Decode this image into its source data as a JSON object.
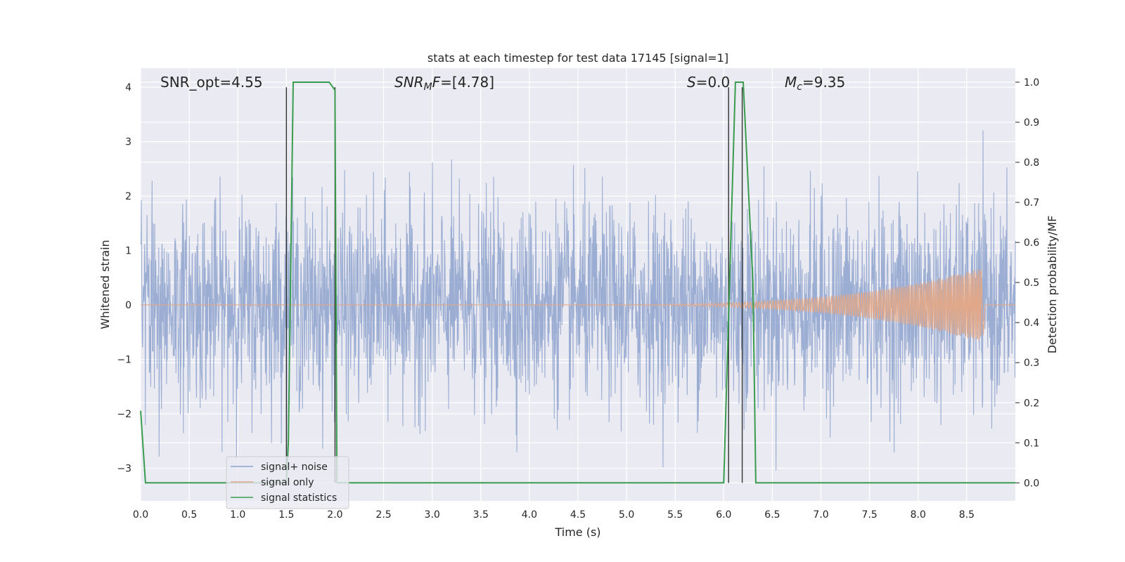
{
  "chart_data": {
    "type": "line",
    "title": "stats at each timestep for test data 17145 [signal=1]",
    "xlabel": "Time (s)",
    "ylabel_left": "Whitened strain",
    "ylabel_right": "Detection probability/MF",
    "xlim": [
      0.0,
      9.0
    ],
    "ylim_left": [
      -3.6,
      4.35
    ],
    "ylim_right": [
      -0.045,
      1.035
    ],
    "x_ticks": [
      "0.0",
      "0.5",
      "1.0",
      "1.5",
      "2.0",
      "2.5",
      "3.0",
      "3.5",
      "4.0",
      "4.5",
      "5.0",
      "5.5",
      "6.0",
      "6.5",
      "7.0",
      "7.5",
      "8.0",
      "8.5"
    ],
    "y_ticks_left": [
      "−3",
      "−2",
      "−1",
      "0",
      "1",
      "2",
      "3",
      "4"
    ],
    "y_ticks_right": [
      "0.0",
      "0.1",
      "0.2",
      "0.3",
      "0.4",
      "0.5",
      "0.6",
      "0.7",
      "0.8",
      "0.9",
      "1.0"
    ],
    "grid": true,
    "legend_position": "lower-left",
    "annotations": {
      "snr_opt": "SNR_opt=4.55",
      "snr_mf": "[4.78]",
      "snr_mf_prefix": "SNR",
      "snr_mf_sub": "M",
      "snr_mf_suffix": "F=",
      "s_stat_prefix": "S",
      "s_stat_value": "=0.0",
      "mc_prefix": "M",
      "mc_sub": "c",
      "mc_value": "=9.35"
    },
    "series": [
      {
        "name": "signal+ noise",
        "color": "#8da2cc",
        "description_hidden": true,
        "noise_sigma": 0.9,
        "x_range": [
          0.0,
          9.0
        ]
      },
      {
        "name": "signal only",
        "color": "#e1a889",
        "chirp": {
          "start": 4.5,
          "peak": 8.65,
          "peak_amp": 0.65
        }
      },
      {
        "name": "signal statistics",
        "color": "#3a9c4e",
        "axis": "right",
        "x": [
          0.0,
          0.05,
          0.12,
          1.5,
          1.52,
          1.57,
          1.94,
          2.0,
          2.02,
          6.0,
          6.06,
          6.12,
          6.2,
          6.3,
          6.33,
          9.0
        ],
        "y": [
          0.18,
          0.0,
          0.0,
          0.0,
          0.1,
          1.0,
          1.0,
          0.98,
          0.0,
          0.0,
          0.5,
          1.0,
          1.0,
          0.5,
          0.0,
          0.0
        ]
      }
    ],
    "vertical_lines": [
      1.5,
      2.0,
      6.05,
      6.19
    ]
  }
}
